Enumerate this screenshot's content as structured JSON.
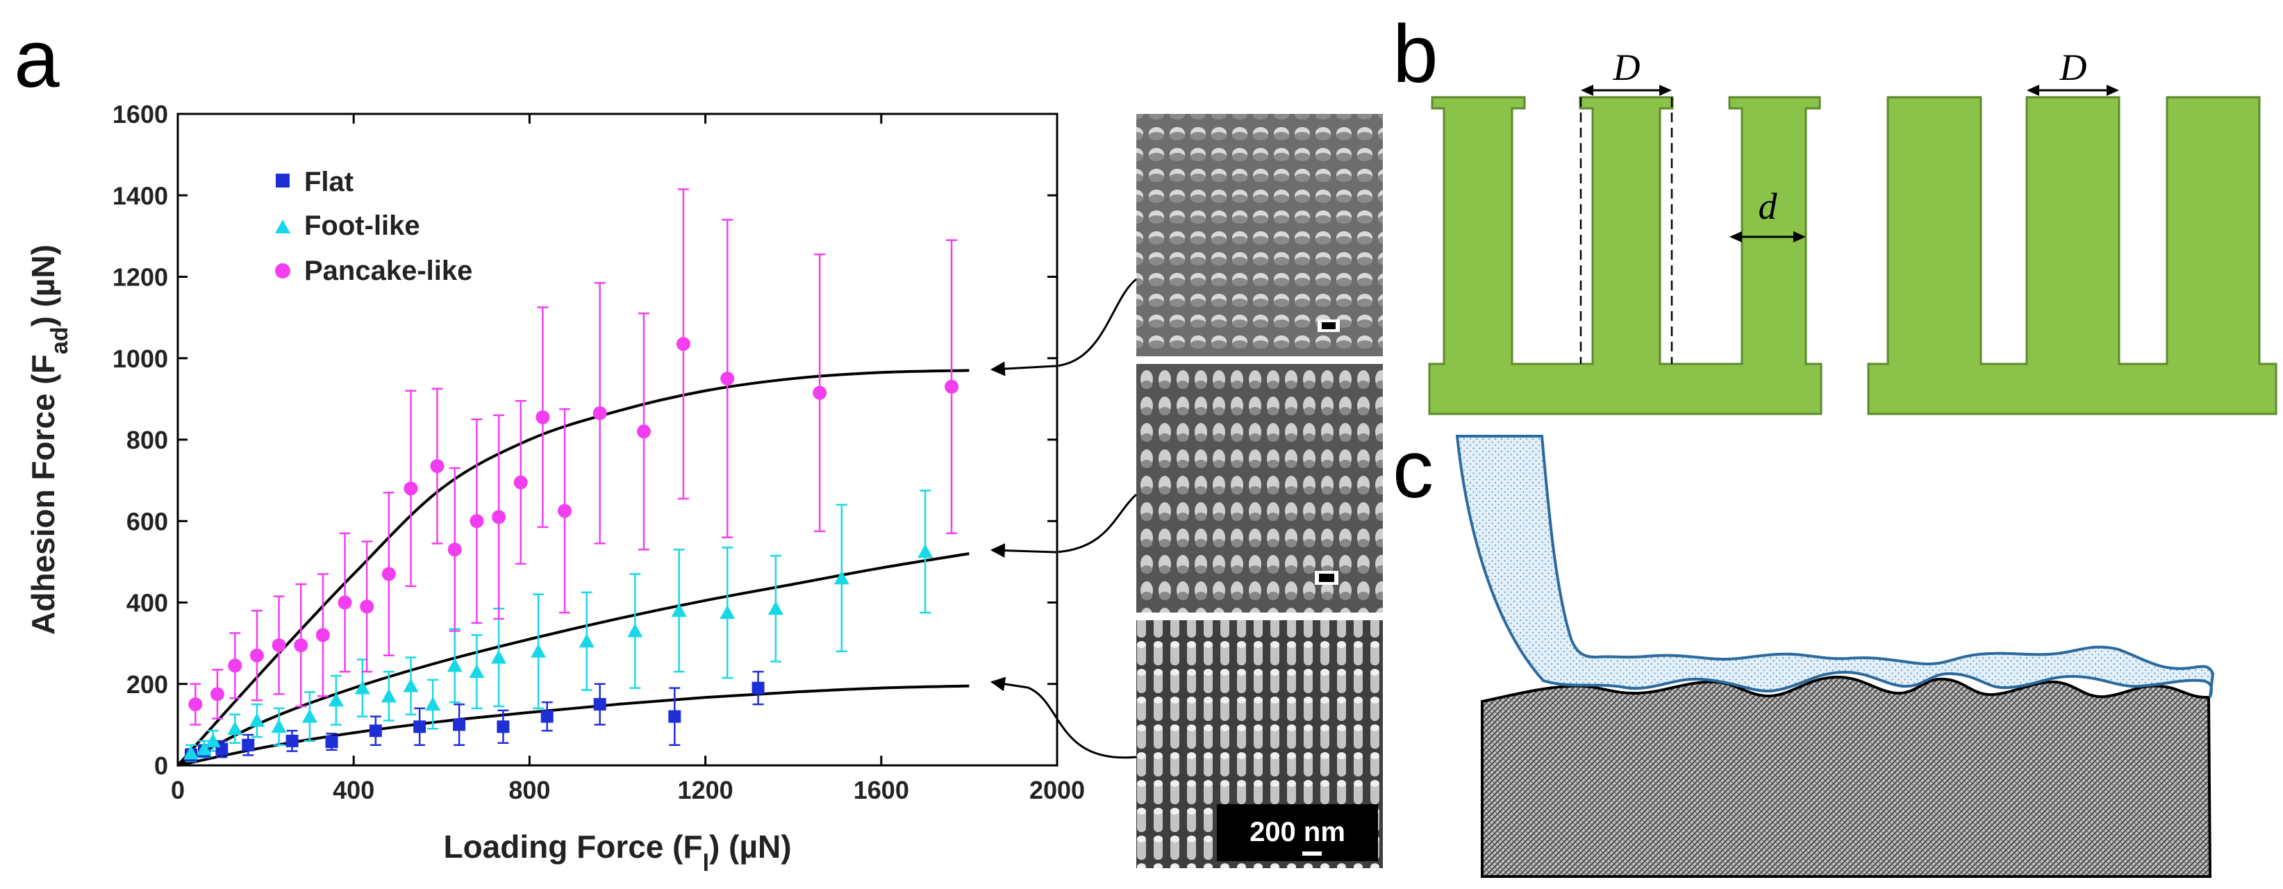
{
  "panels": {
    "a": "a",
    "b": "b",
    "c": "c"
  },
  "colors": {
    "flat": "#1f2fd6",
    "foot": "#18d8e8",
    "pancake": "#f23ef0",
    "pillar": "#8bc34a",
    "pillar_edge": "#5d8a2c",
    "film_edge": "#2b6a9e",
    "film_fill": "#d7eaf6"
  },
  "chart_data": {
    "type": "scatter",
    "xlabel": "Loading Force (F_l) (µN)",
    "ylabel": "Adhesion Force (F_ad) (µN)",
    "xlim": [
      0,
      2000
    ],
    "ylim": [
      0,
      1600
    ],
    "xticks": [
      0,
      400,
      800,
      1200,
      1600,
      2000
    ],
    "yticks": [
      0,
      200,
      400,
      600,
      800,
      1000,
      1200,
      1400,
      1600
    ],
    "legend_position": "top-left",
    "series": [
      {
        "name": "Flat",
        "marker": "square",
        "color": "#1f2fd6",
        "points": [
          {
            "x": 30,
            "y": 25,
            "err": 15
          },
          {
            "x": 60,
            "y": 35,
            "err": 15
          },
          {
            "x": 100,
            "y": 40,
            "err": 20
          },
          {
            "x": 160,
            "y": 50,
            "err": 25
          },
          {
            "x": 260,
            "y": 60,
            "err": 25
          },
          {
            "x": 350,
            "y": 58,
            "err": 20
          },
          {
            "x": 450,
            "y": 85,
            "err": 35
          },
          {
            "x": 550,
            "y": 95,
            "err": 45
          },
          {
            "x": 640,
            "y": 100,
            "err": 50
          },
          {
            "x": 740,
            "y": 95,
            "err": 40
          },
          {
            "x": 840,
            "y": 120,
            "err": 35
          },
          {
            "x": 960,
            "y": 150,
            "err": 50
          },
          {
            "x": 1130,
            "y": 120,
            "err": 70
          },
          {
            "x": 1320,
            "y": 190,
            "err": 40
          }
        ],
        "fit": [
          [
            0,
            0
          ],
          [
            200,
            45
          ],
          [
            400,
            80
          ],
          [
            600,
            108
          ],
          [
            800,
            130
          ],
          [
            1000,
            150
          ],
          [
            1200,
            167
          ],
          [
            1400,
            180
          ],
          [
            1600,
            190
          ],
          [
            1800,
            195
          ]
        ]
      },
      {
        "name": "Foot-like",
        "marker": "triangle",
        "color": "#18d8e8",
        "points": [
          {
            "x": 30,
            "y": 30,
            "err": 20
          },
          {
            "x": 60,
            "y": 40,
            "err": 20
          },
          {
            "x": 80,
            "y": 60,
            "err": 25
          },
          {
            "x": 130,
            "y": 90,
            "err": 35
          },
          {
            "x": 180,
            "y": 110,
            "err": 40
          },
          {
            "x": 230,
            "y": 95,
            "err": 45
          },
          {
            "x": 300,
            "y": 120,
            "err": 60
          },
          {
            "x": 360,
            "y": 160,
            "err": 60
          },
          {
            "x": 420,
            "y": 190,
            "err": 70
          },
          {
            "x": 480,
            "y": 170,
            "err": 60
          },
          {
            "x": 530,
            "y": 195,
            "err": 70
          },
          {
            "x": 580,
            "y": 150,
            "err": 60
          },
          {
            "x": 630,
            "y": 245,
            "err": 90
          },
          {
            "x": 680,
            "y": 230,
            "err": 90
          },
          {
            "x": 730,
            "y": 265,
            "err": 120
          },
          {
            "x": 820,
            "y": 280,
            "err": 140
          },
          {
            "x": 930,
            "y": 305,
            "err": 120
          },
          {
            "x": 1040,
            "y": 330,
            "err": 140
          },
          {
            "x": 1140,
            "y": 380,
            "err": 150
          },
          {
            "x": 1250,
            "y": 375,
            "err": 160
          },
          {
            "x": 1360,
            "y": 385,
            "err": 130
          },
          {
            "x": 1510,
            "y": 460,
            "err": 180
          },
          {
            "x": 1700,
            "y": 525,
            "err": 150
          }
        ],
        "fit": [
          [
            0,
            0
          ],
          [
            200,
            110
          ],
          [
            400,
            190
          ],
          [
            600,
            255
          ],
          [
            800,
            310
          ],
          [
            1000,
            360
          ],
          [
            1200,
            405
          ],
          [
            1400,
            445
          ],
          [
            1600,
            485
          ],
          [
            1800,
            520
          ]
        ]
      },
      {
        "name": "Pancake-like",
        "marker": "circle",
        "color": "#f23ef0",
        "points": [
          {
            "x": 40,
            "y": 150,
            "err": 50
          },
          {
            "x": 90,
            "y": 175,
            "err": 60
          },
          {
            "x": 130,
            "y": 245,
            "err": 80
          },
          {
            "x": 180,
            "y": 270,
            "err": 110
          },
          {
            "x": 230,
            "y": 295,
            "err": 120
          },
          {
            "x": 280,
            "y": 295,
            "err": 150
          },
          {
            "x": 330,
            "y": 320,
            "err": 150
          },
          {
            "x": 380,
            "y": 400,
            "err": 170
          },
          {
            "x": 430,
            "y": 390,
            "err": 160
          },
          {
            "x": 480,
            "y": 470,
            "err": 200
          },
          {
            "x": 530,
            "y": 680,
            "err": 240
          },
          {
            "x": 590,
            "y": 735,
            "err": 190
          },
          {
            "x": 630,
            "y": 530,
            "err": 200
          },
          {
            "x": 680,
            "y": 600,
            "err": 250
          },
          {
            "x": 730,
            "y": 610,
            "err": 250
          },
          {
            "x": 780,
            "y": 695,
            "err": 200
          },
          {
            "x": 830,
            "y": 855,
            "err": 270
          },
          {
            "x": 880,
            "y": 625,
            "err": 250
          },
          {
            "x": 960,
            "y": 865,
            "err": 320
          },
          {
            "x": 1060,
            "y": 820,
            "err": 290
          },
          {
            "x": 1150,
            "y": 1035,
            "err": 380
          },
          {
            "x": 1250,
            "y": 950,
            "err": 390
          },
          {
            "x": 1460,
            "y": 915,
            "err": 340
          },
          {
            "x": 1760,
            "y": 930,
            "err": 360
          }
        ],
        "fit": [
          [
            0,
            0
          ],
          [
            200,
            240
          ],
          [
            400,
            470
          ],
          [
            600,
            680
          ],
          [
            800,
            800
          ],
          [
            1000,
            870
          ],
          [
            1200,
            920
          ],
          [
            1400,
            950
          ],
          [
            1600,
            965
          ],
          [
            1800,
            970
          ]
        ]
      }
    ]
  },
  "sem": {
    "scale_bar_label": "200 nm"
  },
  "schematic": {
    "D_label": "D",
    "d_label": "d"
  }
}
